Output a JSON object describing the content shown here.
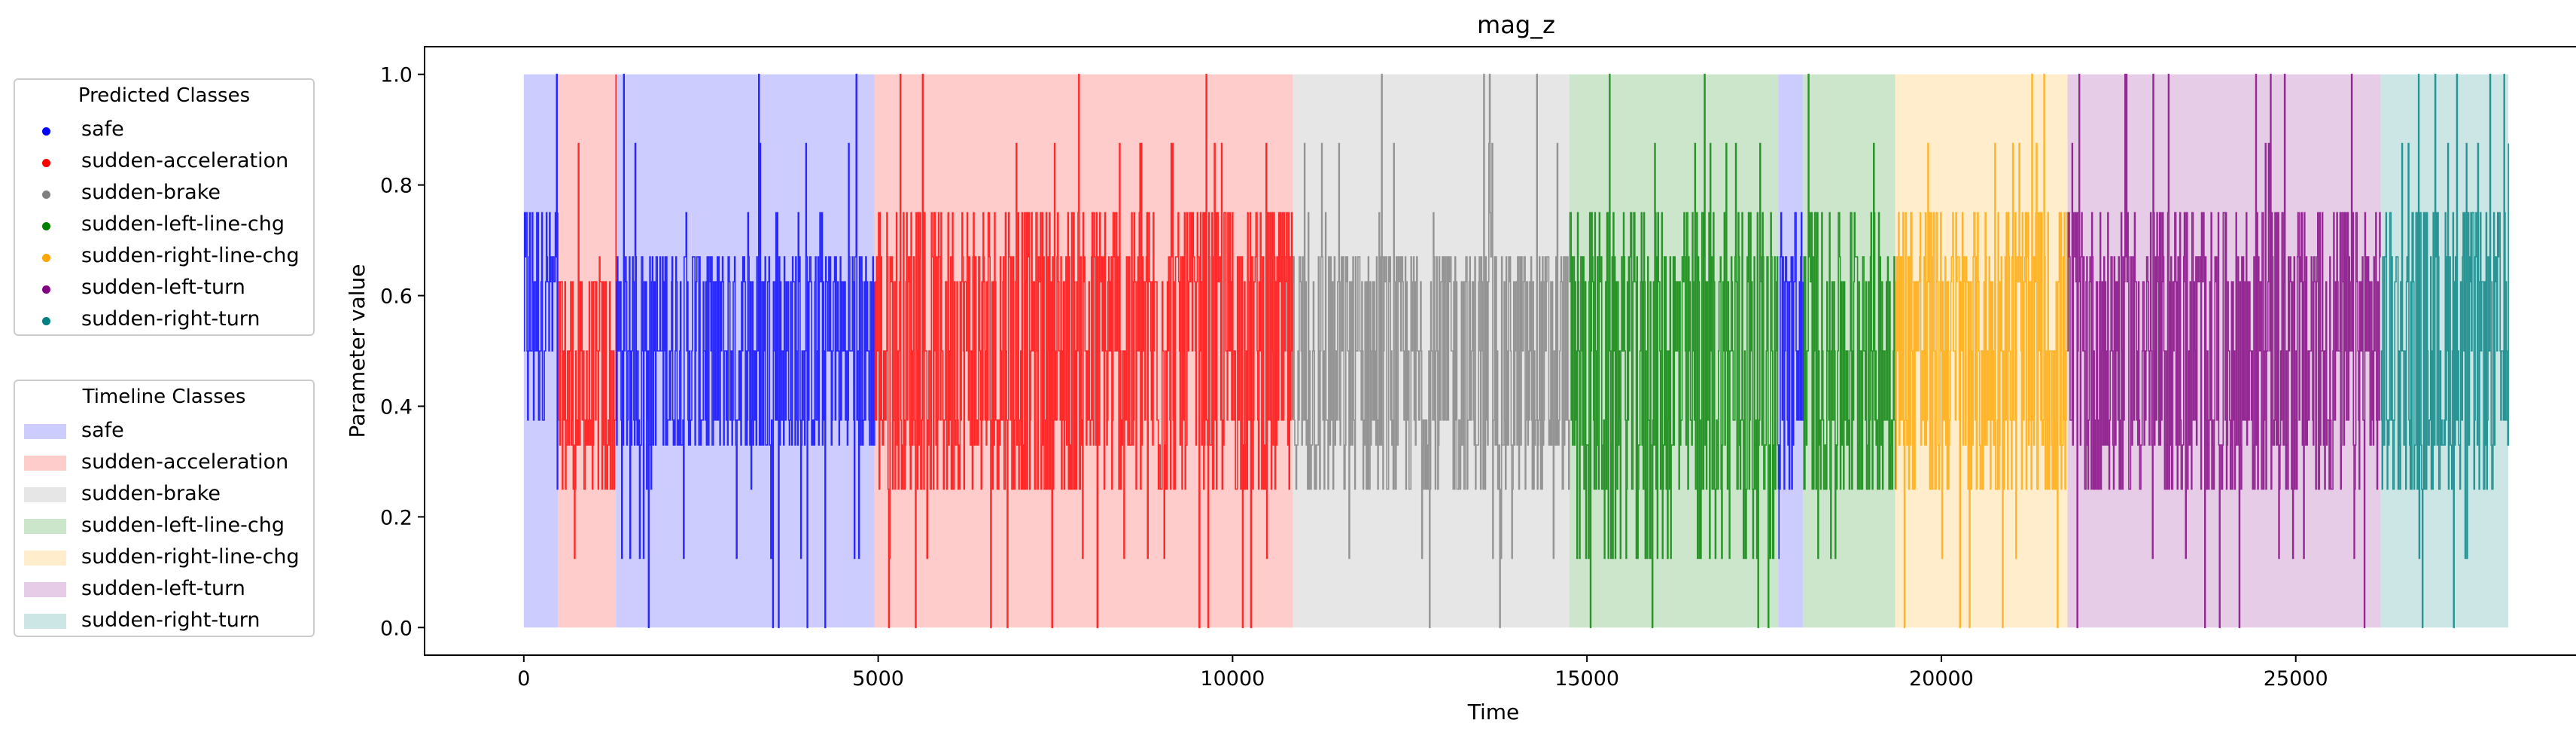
{
  "chart_data": {
    "type": "line",
    "title": "mag_z",
    "xlabel": "Time",
    "ylabel": "Parameter value",
    "xlim": [
      -1400,
      29400
    ],
    "ylim": [
      -0.05,
      1.05
    ],
    "xticks": [
      0,
      5000,
      10000,
      15000,
      20000,
      25000
    ],
    "xtick_labels": [
      "0",
      "5000",
      "10000",
      "15000",
      "20000",
      "25000"
    ],
    "yticks": [
      0.0,
      0.2,
      0.4,
      0.6,
      0.8,
      1.0
    ],
    "ytick_labels": [
      "0.0",
      "0.2",
      "0.4",
      "0.6",
      "0.8",
      "1.0"
    ],
    "grid": false,
    "value_levels": [
      0.0,
      0.125,
      0.25,
      0.33,
      0.375,
      0.5,
      0.625,
      0.67,
      0.75,
      0.875,
      1.0
    ],
    "timeline_segments": [
      {
        "class": "safe",
        "start": 0,
        "end": 480
      },
      {
        "class": "sudden-acceleration",
        "start": 480,
        "end": 1300
      },
      {
        "class": "safe",
        "start": 1300,
        "end": 4950
      },
      {
        "class": "sudden-acceleration",
        "start": 4950,
        "end": 10850
      },
      {
        "class": "sudden-brake",
        "start": 10850,
        "end": 14750
      },
      {
        "class": "sudden-left-line-chg",
        "start": 14750,
        "end": 17700
      },
      {
        "class": "safe",
        "start": 17700,
        "end": 18050
      },
      {
        "class": "sudden-left-line-chg",
        "start": 18050,
        "end": 19350
      },
      {
        "class": "sudden-right-line-chg",
        "start": 19350,
        "end": 21780
      },
      {
        "class": "sudden-left-turn",
        "start": 21780,
        "end": 26200
      },
      {
        "class": "sudden-right-turn",
        "start": 26200,
        "end": 28000
      }
    ],
    "predicted_segments": [
      {
        "class": "safe",
        "start": 0,
        "end": 480,
        "typical_range": [
          0.375,
          0.75
        ]
      },
      {
        "class": "sudden-acceleration",
        "start": 480,
        "end": 1300,
        "typical_range": [
          0.25,
          0.625
        ]
      },
      {
        "class": "safe",
        "start": 1300,
        "end": 4950,
        "typical_range": [
          0.33,
          0.67
        ]
      },
      {
        "class": "sudden-acceleration",
        "start": 4950,
        "end": 10850,
        "typical_range": [
          0.25,
          0.75
        ]
      },
      {
        "class": "sudden-brake",
        "start": 10850,
        "end": 14750,
        "typical_range": [
          0.14,
          0.71
        ]
      },
      {
        "class": "sudden-left-line-chg",
        "start": 14750,
        "end": 17700,
        "typical_range": [
          0.125,
          0.75
        ]
      },
      {
        "class": "safe",
        "start": 17700,
        "end": 18050,
        "typical_range": [
          0.25,
          0.75
        ]
      },
      {
        "class": "sudden-left-line-chg",
        "start": 18050,
        "end": 19350,
        "typical_range": [
          0.25,
          0.75
        ]
      },
      {
        "class": "sudden-right-line-chg",
        "start": 19350,
        "end": 21780,
        "typical_range": [
          0.25,
          0.75
        ]
      },
      {
        "class": "sudden-left-turn",
        "start": 21780,
        "end": 26200,
        "typical_range": [
          0.2,
          0.8
        ]
      },
      {
        "class": "sudden-right-turn",
        "start": 26200,
        "end": 28000,
        "typical_range": [
          0.25,
          0.75
        ]
      }
    ],
    "classes": [
      {
        "name": "safe",
        "line_color": "#0000ff",
        "fill_color": "#ccccff"
      },
      {
        "name": "sudden-acceleration",
        "line_color": "#ff0000",
        "fill_color": "#ffcccc"
      },
      {
        "name": "sudden-brake",
        "line_color": "#808080",
        "fill_color": "#e6e6e6"
      },
      {
        "name": "sudden-left-line-chg",
        "line_color": "#008000",
        "fill_color": "#cce6cc"
      },
      {
        "name": "sudden-right-line-chg",
        "line_color": "#ffa500",
        "fill_color": "#ffedcc"
      },
      {
        "name": "sudden-left-turn",
        "line_color": "#800080",
        "fill_color": "#e6cce6"
      },
      {
        "name": "sudden-right-turn",
        "line_color": "#008080",
        "fill_color": "#cce6e6"
      }
    ]
  },
  "legends": {
    "predicted": {
      "title": "Predicted Classes",
      "items": [
        "safe",
        "sudden-acceleration",
        "sudden-brake",
        "sudden-left-line-chg",
        "sudden-right-line-chg",
        "sudden-left-turn",
        "sudden-right-turn"
      ]
    },
    "timeline": {
      "title": "Timeline Classes",
      "items": [
        "safe",
        "sudden-acceleration",
        "sudden-brake",
        "sudden-left-line-chg",
        "sudden-right-line-chg",
        "sudden-left-turn",
        "sudden-right-turn"
      ]
    }
  }
}
